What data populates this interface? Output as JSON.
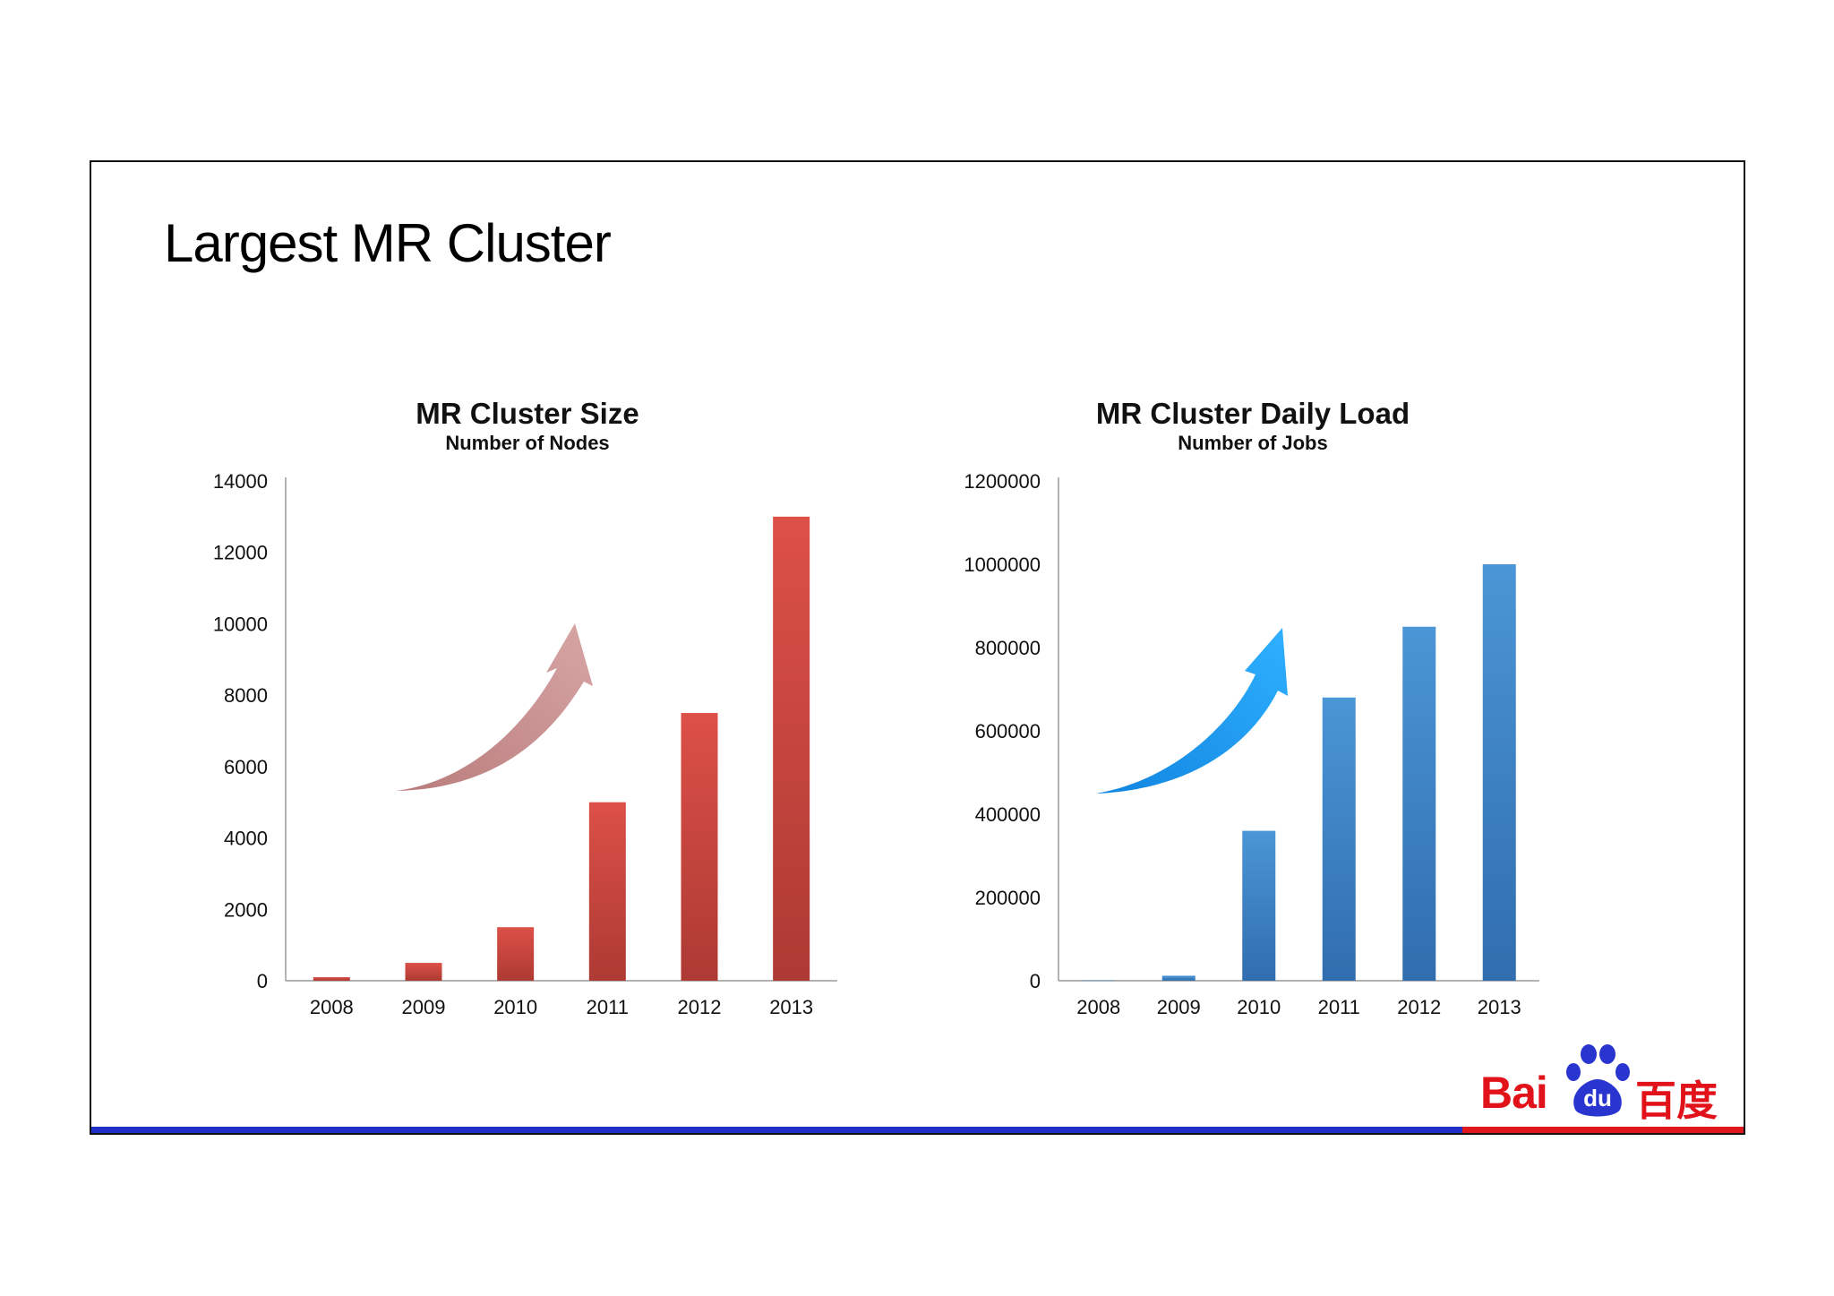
{
  "slide": {
    "title": "Largest MR Cluster",
    "logo_text": "Baidu百度",
    "colors": {
      "footer_left": "#1f2fc8",
      "footer_right": "#e0181b",
      "logo": "#e2121b"
    }
  },
  "chart_data": [
    {
      "type": "bar",
      "title": "MR Cluster Size",
      "subtitle": "Number of Nodes",
      "categories": [
        "2008",
        "2009",
        "2010",
        "2011",
        "2012",
        "2013"
      ],
      "values": [
        100,
        500,
        1500,
        5000,
        7500,
        13000
      ],
      "ylim": [
        0,
        14000
      ],
      "yticks": [
        "0",
        "2000",
        "4000",
        "6000",
        "8000",
        "10000",
        "12000",
        "14000"
      ],
      "color": "#c9443c",
      "arrow_color": "#c99696",
      "grid": false,
      "legend": "none"
    },
    {
      "type": "bar",
      "title": "MR Cluster Daily Load",
      "subtitle": "Number of Jobs",
      "categories": [
        "2008",
        "2009",
        "2010",
        "2011",
        "2012",
        "2013"
      ],
      "values": [
        1000,
        12000,
        360000,
        680000,
        850000,
        1000000
      ],
      "ylim": [
        0,
        1200000
      ],
      "yticks": [
        "0",
        "200000",
        "400000",
        "600000",
        "800000",
        "1000000",
        "1200000"
      ],
      "color": "#3d82c4",
      "arrow_color": "#1e9cf0",
      "grid": false,
      "legend": "none"
    }
  ]
}
